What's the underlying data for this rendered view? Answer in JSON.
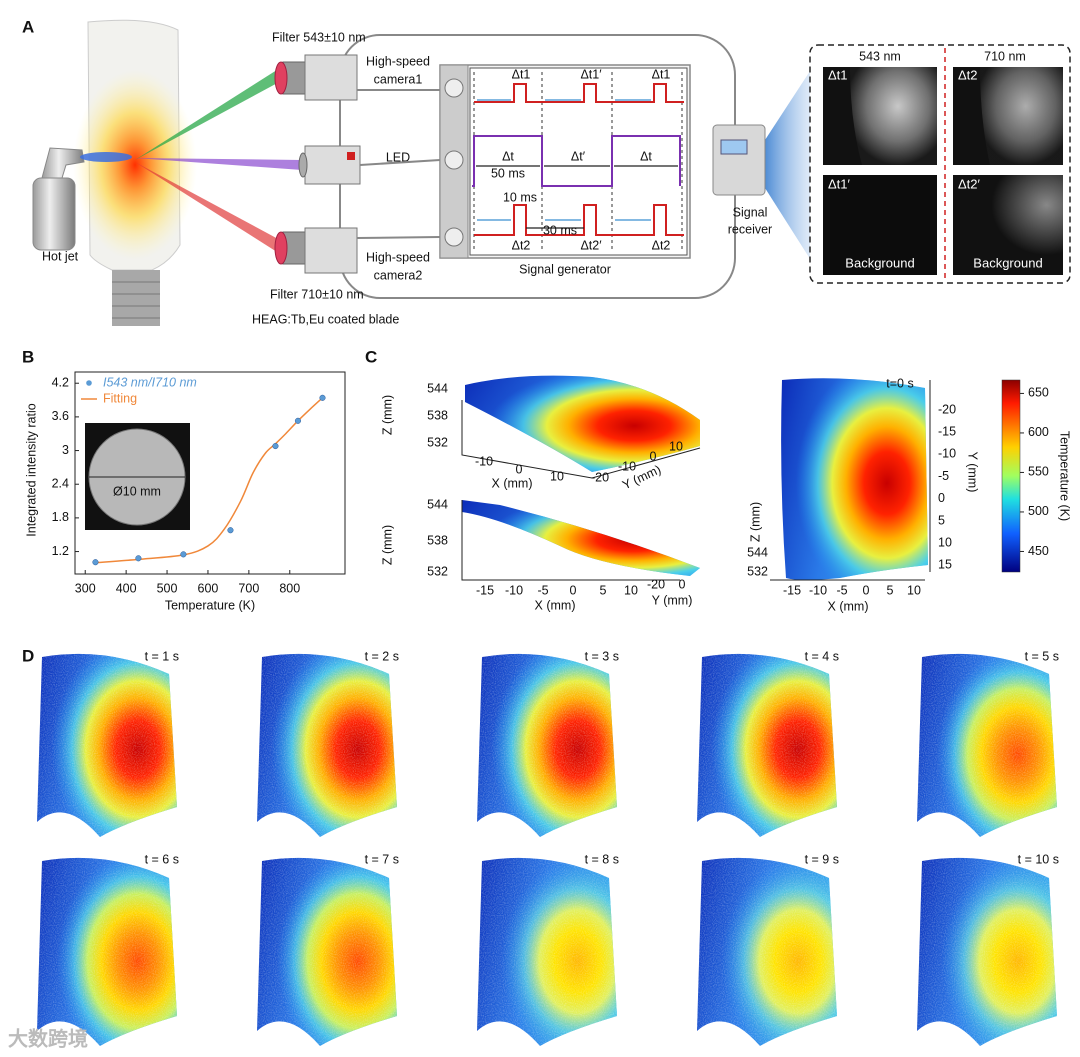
{
  "panel_labels": [
    "A",
    "B",
    "C",
    "D"
  ],
  "panel_a": {
    "filter_1": "Filter 543±10 nm",
    "filter_2": "Filter 710±10 nm",
    "camera_1": [
      "High-speed",
      "camera1"
    ],
    "led": "LED",
    "camera_2": [
      "High-speed",
      "camera2"
    ],
    "hot_jet": "Hot jet",
    "blade": "HEAG:Tb,Eu coated blade",
    "signal_generator": "Signal generator",
    "timing": {
      "row1": [
        "Δt1",
        "Δt1′",
        "Δt1"
      ],
      "row2": [
        "Δt",
        "Δt′",
        "Δt"
      ],
      "period": "50 ms",
      "pulse_width": "10 ms",
      "gap": "30 ms",
      "row3": [
        "Δt2",
        "Δt2′",
        "Δt2"
      ]
    },
    "receiver": [
      "Signal",
      "receiver"
    ],
    "images": {
      "columns": [
        "543 nm",
        "710 nm"
      ],
      "tiles": [
        {
          "label": "Δt1"
        },
        {
          "label": "Δt2"
        },
        {
          "label": "Δt1′",
          "note": "Background"
        },
        {
          "label": "Δt2′",
          "note": "Background"
        }
      ]
    }
  },
  "chart_data": {
    "type": "line",
    "x_label": "Temperature (K)",
    "y_label": "Integrated intensity ratio",
    "annotations": [
      "Ø10 mm"
    ],
    "series": [
      {
        "name": "I543 nm/I710 nm",
        "color": "#5b9bd5",
        "marker": "circle",
        "x": [
          325,
          430,
          540,
          655,
          765,
          820,
          880
        ],
        "values": [
          1.01,
          1.08,
          1.15,
          1.58,
          3.08,
          3.53,
          3.94
        ]
      },
      {
        "name": "Fitting",
        "color": "#f0883a",
        "marker": "none",
        "x": [
          325,
          430,
          540,
          600,
          640,
          680,
          710,
          740,
          765,
          790,
          820,
          850,
          880
        ],
        "values": [
          1.0,
          1.06,
          1.14,
          1.3,
          1.6,
          2.1,
          2.6,
          2.95,
          3.12,
          3.3,
          3.53,
          3.74,
          3.94
        ]
      }
    ],
    "xlim": [
      275,
      935
    ],
    "ylim": [
      0.8,
      4.4
    ],
    "xticks": [
      300,
      400,
      500,
      600,
      700,
      800
    ],
    "yticks": [
      1.2,
      1.8,
      2.4,
      3.0,
      3.6,
      4.2
    ],
    "legend": "upper left"
  },
  "panel_c": {
    "top": {
      "z_label": "Z (mm)",
      "z_ticks": [
        544,
        538,
        532
      ],
      "x_label": "X (mm)",
      "x_ticks": [
        -10,
        0,
        10
      ],
      "y_label": "Y (mm)",
      "y_ticks": [
        -20,
        -10,
        0,
        10
      ]
    },
    "bottom": {
      "z_label": "Z (mm)",
      "z_ticks": [
        544,
        538,
        532
      ],
      "x_label": "X (mm)",
      "x_ticks": [
        -15,
        -10,
        -5,
        0,
        5,
        10
      ],
      "y_label": "Y (mm)",
      "y_ticks": [
        -20,
        0
      ]
    },
    "map": {
      "time": "t=0 s",
      "y_label": "Y (mm)",
      "y_ticks": [
        -20,
        -15,
        -10,
        -5,
        0,
        5,
        10,
        15
      ],
      "z_label": "Z (mm)",
      "z_ticks": [
        544,
        532
      ],
      "x_label": "X (mm)",
      "x_ticks": [
        -15,
        -10,
        -5,
        0,
        5,
        10
      ]
    },
    "colorbar": {
      "label": "Temperature (K)",
      "lim": [
        424,
        667
      ],
      "ticks": [
        450,
        500,
        550,
        600,
        650
      ]
    }
  },
  "panel_d": {
    "frames": [
      "t = 1 s",
      "t = 2 s",
      "t = 3 s",
      "t = 4 s",
      "t = 5 s",
      "t = 6 s",
      "t = 7 s",
      "t = 8 s",
      "t = 9 s",
      "t = 10 s"
    ]
  },
  "watermark": "大数跨境"
}
